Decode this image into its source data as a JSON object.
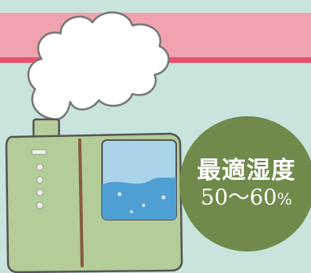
{
  "badge": {
    "title": "最適湿度",
    "value": "50〜60",
    "unit": "%"
  },
  "colors": {
    "background": "#c8e4dc",
    "band": "#f0a3ae",
    "band_line": "#e8506e",
    "humidifier_body": "#b4cc98",
    "water": "#4f9fd4",
    "badge": "#6f8a4a"
  },
  "icons": [
    "steam-cloud-icon",
    "humidifier-icon"
  ]
}
